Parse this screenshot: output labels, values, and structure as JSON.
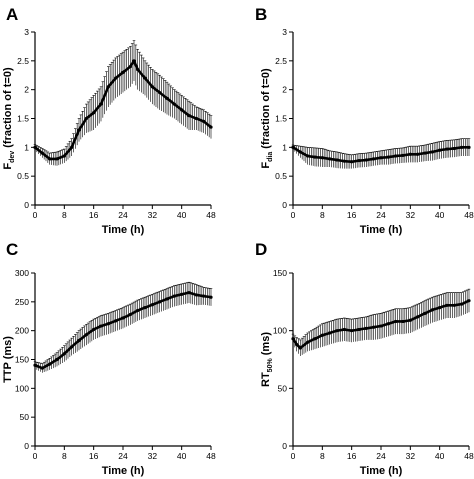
{
  "chart_data": [
    {
      "type": "line",
      "panel": "A",
      "ylabel_main": "F",
      "ylabel_sub": "dev",
      "ylabel_rest": " (fraction of t=0)",
      "xlabel": "Time (h)",
      "xlim": [
        0,
        48
      ],
      "ylim": [
        0,
        3
      ],
      "xticks": [
        "0",
        "8",
        "16",
        "24",
        "32",
        "40",
        "48"
      ],
      "yticks": [
        "0",
        "0.5",
        "1",
        "1.5",
        "2",
        "2.5",
        "3"
      ],
      "grid": false,
      "series": [
        {
          "x": [
            0,
            2,
            4,
            6,
            8,
            10,
            12,
            14,
            16,
            18,
            20,
            22,
            24,
            26,
            27,
            28,
            30,
            32,
            34,
            36,
            38,
            40,
            42,
            44,
            46,
            48
          ],
          "y": [
            1.0,
            0.9,
            0.8,
            0.8,
            0.85,
            1.0,
            1.3,
            1.5,
            1.6,
            1.75,
            2.05,
            2.2,
            2.3,
            2.4,
            2.5,
            2.35,
            2.2,
            2.05,
            1.95,
            1.85,
            1.75,
            1.65,
            1.55,
            1.5,
            1.45,
            1.35
          ],
          "err": [
            0.05,
            0.08,
            0.1,
            0.12,
            0.12,
            0.15,
            0.2,
            0.25,
            0.3,
            0.3,
            0.35,
            0.35,
            0.35,
            0.35,
            0.35,
            0.35,
            0.3,
            0.3,
            0.3,
            0.28,
            0.25,
            0.25,
            0.25,
            0.2,
            0.2,
            0.2
          ]
        }
      ]
    },
    {
      "type": "line",
      "panel": "B",
      "ylabel_main": "F",
      "ylabel_sub": "dia",
      "ylabel_rest": " (fraction of t=0)",
      "xlabel": "Time (h)",
      "xlim": [
        0,
        48
      ],
      "ylim": [
        0,
        3
      ],
      "xticks": [
        "0",
        "8",
        "16",
        "24",
        "32",
        "40",
        "48"
      ],
      "yticks": [
        "0",
        "0.5",
        "1",
        "1.5",
        "2",
        "2.5",
        "3"
      ],
      "grid": false,
      "series": [
        {
          "x": [
            0,
            2,
            4,
            6,
            8,
            10,
            12,
            14,
            16,
            18,
            20,
            22,
            24,
            26,
            28,
            30,
            32,
            34,
            36,
            38,
            40,
            42,
            44,
            46,
            48
          ],
          "y": [
            1.0,
            0.92,
            0.85,
            0.83,
            0.82,
            0.8,
            0.78,
            0.76,
            0.75,
            0.77,
            0.78,
            0.8,
            0.82,
            0.83,
            0.85,
            0.86,
            0.88,
            0.88,
            0.9,
            0.92,
            0.95,
            0.97,
            0.98,
            1.0,
            1.0
          ],
          "err": [
            0.04,
            0.1,
            0.15,
            0.16,
            0.16,
            0.14,
            0.14,
            0.13,
            0.12,
            0.12,
            0.12,
            0.12,
            0.12,
            0.13,
            0.13,
            0.13,
            0.14,
            0.14,
            0.14,
            0.15,
            0.15,
            0.15,
            0.15,
            0.15,
            0.15
          ]
        }
      ]
    },
    {
      "type": "line",
      "panel": "C",
      "ylabel_main": "TTP (ms)",
      "ylabel_sub": "",
      "ylabel_rest": "",
      "xlabel": "Time (h)",
      "xlim": [
        0,
        48
      ],
      "ylim": [
        0,
        300
      ],
      "xticks": [
        "0",
        "8",
        "16",
        "24",
        "32",
        "40",
        "48"
      ],
      "yticks": [
        "0",
        "50",
        "100",
        "150",
        "200",
        "250",
        "300"
      ],
      "grid": false,
      "series": [
        {
          "x": [
            0,
            2,
            4,
            6,
            8,
            10,
            12,
            14,
            16,
            18,
            20,
            22,
            24,
            26,
            28,
            30,
            32,
            34,
            36,
            38,
            40,
            42,
            44,
            46,
            48
          ],
          "y": [
            140,
            135,
            142,
            150,
            160,
            172,
            183,
            193,
            202,
            208,
            212,
            217,
            222,
            228,
            235,
            240,
            245,
            250,
            255,
            260,
            263,
            266,
            262,
            260,
            258
          ],
          "err": [
            6,
            8,
            10,
            12,
            14,
            15,
            17,
            18,
            18,
            18,
            18,
            18,
            18,
            18,
            18,
            18,
            18,
            18,
            18,
            18,
            18,
            18,
            18,
            15,
            15
          ]
        }
      ]
    },
    {
      "type": "line",
      "panel": "D",
      "ylabel_main": "RT",
      "ylabel_sub": "50%",
      "ylabel_rest": " (ms)",
      "xlabel": "Time (h)",
      "xlim": [
        0,
        48
      ],
      "ylim": [
        0,
        150
      ],
      "xticks": [
        "0",
        "8",
        "16",
        "24",
        "32",
        "40",
        "48"
      ],
      "yticks": [
        "0",
        "50",
        "100",
        "150"
      ],
      "grid": false,
      "series": [
        {
          "x": [
            0,
            1,
            2,
            4,
            6,
            8,
            10,
            12,
            14,
            16,
            18,
            20,
            22,
            24,
            26,
            28,
            30,
            32,
            34,
            36,
            38,
            40,
            42,
            44,
            46,
            48
          ],
          "y": [
            93,
            88,
            85,
            90,
            93,
            96,
            98,
            100,
            101,
            100,
            101,
            102,
            103,
            104,
            106,
            108,
            108,
            109,
            112,
            115,
            118,
            120,
            122,
            122,
            123,
            126
          ],
          "err": [
            4,
            6,
            7,
            8,
            9,
            10,
            10,
            10,
            10,
            10,
            10,
            10,
            11,
            11,
            11,
            11,
            11,
            11,
            11,
            11,
            11,
            11,
            11,
            11,
            10,
            10
          ]
        }
      ]
    }
  ],
  "colors": {
    "ink": "#000000",
    "background": "#ffffff"
  }
}
